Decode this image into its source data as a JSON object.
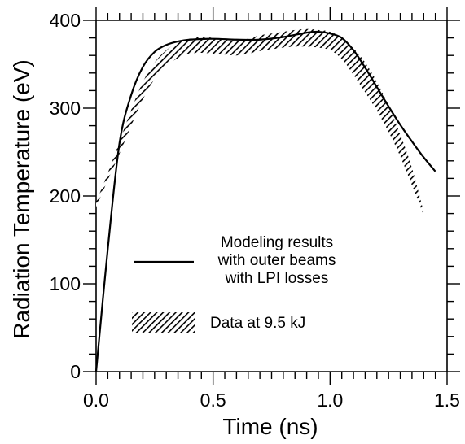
{
  "chart_data": {
    "type": "line",
    "title": "",
    "xlabel": "Time  (ns)",
    "ylabel": "Radiation Temperature  (eV)",
    "xlim": [
      0,
      1.5
    ],
    "ylim": [
      0,
      400
    ],
    "x_ticks": [
      0.0,
      0.5,
      1.0,
      1.5
    ],
    "x_tick_labels": [
      "0.0",
      "0.5",
      "1.0",
      "1.5"
    ],
    "y_ticks": [
      0,
      100,
      200,
      300,
      400
    ],
    "y_tick_labels": [
      "0",
      "100",
      "200",
      "300",
      "400"
    ],
    "grid": false,
    "legend_position": "lower-left",
    "series": [
      {
        "name": "Modeling results with outer beams with LPI losses",
        "legend_lines": [
          "Modeling results",
          "with outer beams",
          "with LPI losses"
        ],
        "style": "solid-line",
        "color": "#000000",
        "x": [
          0.0,
          0.05,
          0.1,
          0.15,
          0.2,
          0.25,
          0.3,
          0.35,
          0.4,
          0.5,
          0.6,
          0.7,
          0.8,
          0.9,
          0.95,
          1.0,
          1.05,
          1.1,
          1.15,
          1.2,
          1.25,
          1.3,
          1.35,
          1.4,
          1.45
        ],
        "y": [
          0,
          140,
          260,
          315,
          347,
          364,
          372,
          376,
          378,
          379,
          378,
          378,
          381,
          386,
          387,
          385,
          380,
          366,
          346,
          324,
          302,
          281,
          262,
          244,
          228
        ]
      },
      {
        "name": "Data at 9.5 kJ",
        "legend_lines": [
          "Data at 9.5 kJ"
        ],
        "style": "hatched-band",
        "color": "#000000",
        "x": [
          0.0,
          0.05,
          0.1,
          0.15,
          0.2,
          0.25,
          0.3,
          0.35,
          0.4,
          0.45,
          0.5,
          0.55,
          0.6,
          0.65,
          0.7,
          0.75,
          0.8,
          0.85,
          0.9,
          0.95,
          1.0,
          1.05,
          1.1,
          1.15,
          1.2,
          1.25,
          1.3,
          1.35,
          1.4
        ],
        "y_low": [
          187,
          218,
          248,
          280,
          310,
          333,
          348,
          357,
          362,
          363,
          362,
          361,
          360,
          362,
          365,
          367,
          369,
          370,
          370,
          369,
          366,
          356,
          338,
          318,
          297,
          273,
          245,
          212,
          178
        ],
        "y_high": [
          193,
          226,
          262,
          298,
          330,
          352,
          366,
          375,
          379,
          381,
          380,
          378,
          377,
          379,
          383,
          385,
          387,
          389,
          390,
          389,
          387,
          380,
          368,
          352,
          330,
          303,
          270,
          232,
          182
        ]
      }
    ]
  }
}
